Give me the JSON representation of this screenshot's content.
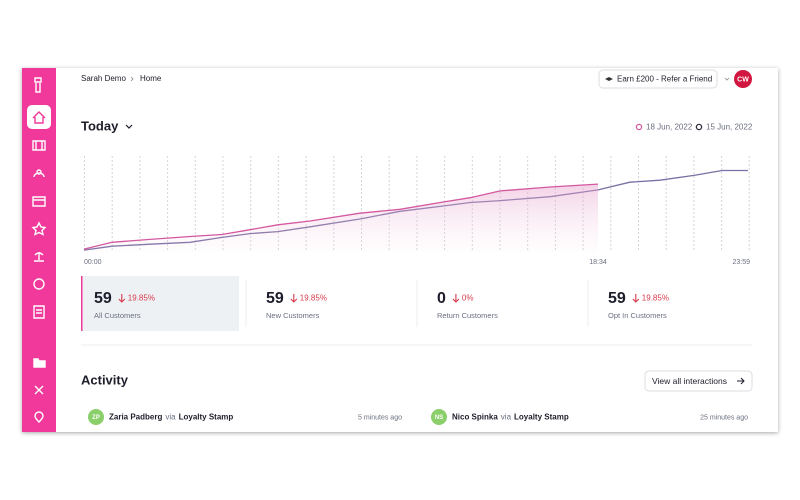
{
  "header": {
    "breadcrumb": [
      "Sarah Demo",
      "Home"
    ],
    "refer_button": "Earn £200 - Refer a Friend",
    "avatar": "CW"
  },
  "chart_data": {
    "type": "line",
    "title": "Today",
    "x": [
      0,
      61,
      143,
      230,
      299,
      360,
      420,
      490,
      598,
      685,
      772,
      837,
      902,
      1010,
      1114,
      1183,
      1248,
      1322,
      1383,
      1439
    ],
    "xlim": [
      0,
      1439
    ],
    "xticks": [
      {
        "value": 0,
        "label": "00:00"
      },
      {
        "value": 1114,
        "label": "18:34"
      },
      {
        "value": 1439,
        "label": "23:59"
      }
    ],
    "ylim": [
      0,
      100
    ],
    "series": [
      {
        "name": "18 Jun, 2022",
        "color": "#d4589f",
        "values": [
          3,
          10,
          13,
          16,
          18,
          23,
          28,
          32,
          40,
          44,
          51,
          56,
          63,
          67,
          70,
          null,
          null,
          null,
          null,
          null
        ]
      },
      {
        "name": "15 Jun, 2022",
        "color": "#7a6fa3",
        "values": [
          2,
          6,
          8,
          10,
          15,
          19,
          21,
          26,
          34,
          42,
          47,
          51,
          53,
          57,
          64,
          72,
          74,
          79,
          84,
          84
        ]
      }
    ]
  },
  "stats": [
    {
      "value": "59",
      "change": "19.85%",
      "label": "All Customers"
    },
    {
      "value": "59",
      "change": "19.85%",
      "label": "New Customers"
    },
    {
      "value": "0",
      "change": "0%",
      "label": "Return Customers"
    },
    {
      "value": "59",
      "change": "19.85%",
      "label": "Opt In Customers"
    }
  ],
  "activity": {
    "title": "Activity",
    "view_all": "View all interactions",
    "items": [
      {
        "initials": "ZP",
        "name": "Zaria Padberg",
        "via": "via",
        "source": "Loyalty Stamp",
        "time": "5 minutes ago"
      },
      {
        "initials": "NS",
        "name": "Nico Spinka",
        "via": "via",
        "source": "Loyalty Stamp",
        "time": "25 minutes ago"
      }
    ]
  }
}
